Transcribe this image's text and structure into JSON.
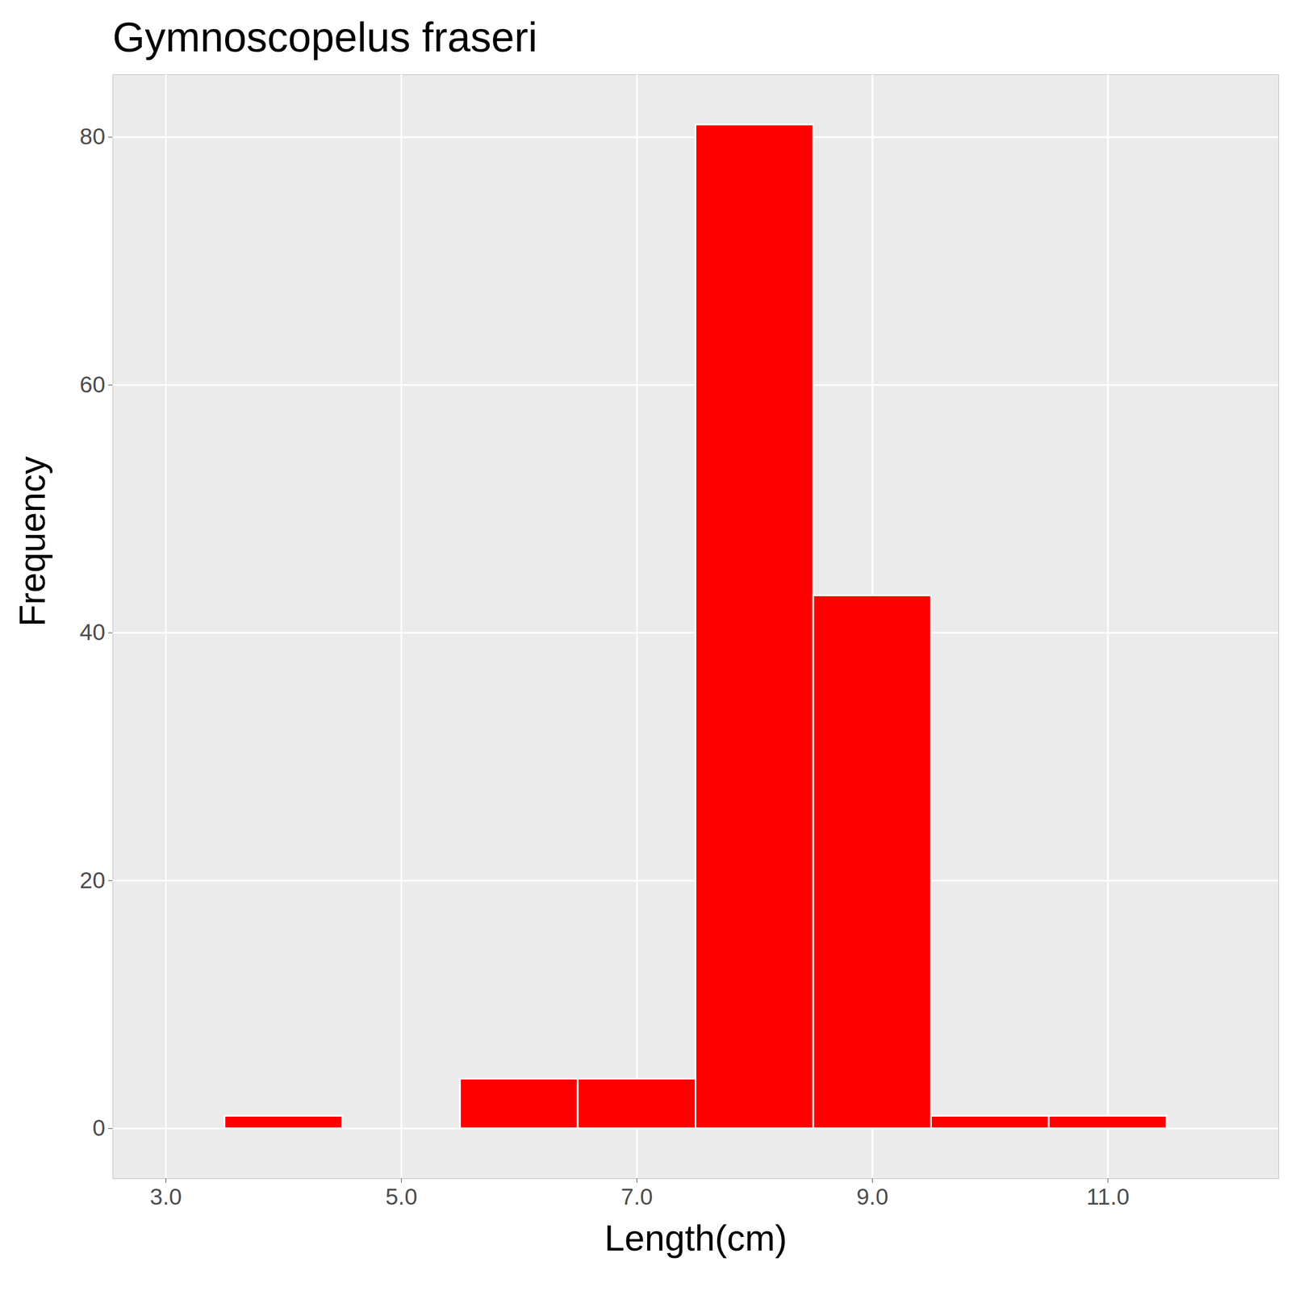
{
  "chart_data": {
    "type": "histogram",
    "title": "Gymnoscopelus fraseri",
    "x_label": "Length(cm)",
    "y_label": "Frequency",
    "bins": [
      3.5,
      4.5,
      5.5,
      6.5,
      7.5,
      8.5,
      9.5,
      10.5,
      11.5
    ],
    "values": [
      1,
      0,
      4,
      4,
      81,
      43,
      1,
      1
    ],
    "color": "#ff0000",
    "xlim": [
      2.55,
      12.45
    ],
    "xticks": [
      3,
      5,
      7,
      9,
      11
    ],
    "ylim": [
      -4.05,
      85.05
    ],
    "yticks": [
      0,
      20,
      40,
      60,
      80
    ],
    "grid": true
  }
}
